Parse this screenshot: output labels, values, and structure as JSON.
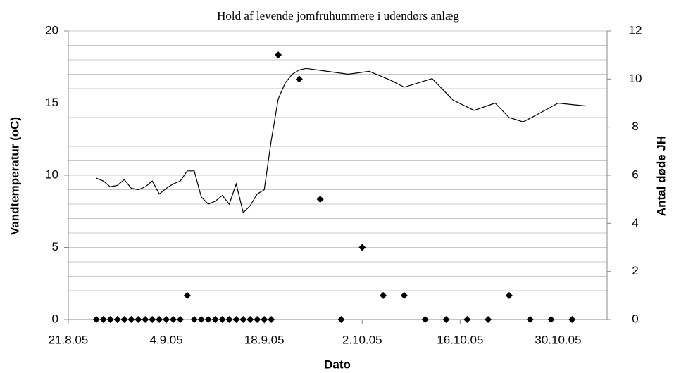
{
  "chart_data": {
    "type": "line",
    "title": "Hold af levende jomfruhummere i udendørs anlæg",
    "xlabel": "Dato",
    "ylabel": "Vandtemperatur (oC)",
    "y2label": "Antal døde JH",
    "xlim": [
      "2005-08-21",
      "2005-11-06"
    ],
    "xticks": [
      {
        "value": "2005-08-21",
        "label": "21.8.05"
      },
      {
        "value": "2005-09-04",
        "label": "4.9.05"
      },
      {
        "value": "2005-09-18",
        "label": "18.9.05"
      },
      {
        "value": "2005-10-02",
        "label": "2.10.05"
      },
      {
        "value": "2005-10-16",
        "label": "16.10.05"
      },
      {
        "value": "2005-10-30",
        "label": "30.10.05"
      }
    ],
    "ylim": [
      0,
      20
    ],
    "yticks": [
      0,
      5,
      10,
      15,
      20
    ],
    "y_minor_grid": [
      1,
      2,
      3,
      4,
      6,
      7,
      8,
      9,
      11,
      12,
      13,
      14,
      16,
      17,
      18,
      19
    ],
    "y2lim": [
      0,
      12
    ],
    "y2ticks": [
      0,
      2,
      4,
      6,
      8,
      10,
      12
    ],
    "grid": true,
    "series": [
      {
        "type": "line",
        "color": "#000000",
        "x": [
          "2005-08-25",
          "2005-08-26",
          "2005-08-27",
          "2005-08-28",
          "2005-08-29",
          "2005-08-30",
          "2005-08-31",
          "2005-09-01",
          "2005-09-02",
          "2005-09-03",
          "2005-09-04",
          "2005-09-05",
          "2005-09-06",
          "2005-09-07",
          "2005-09-08",
          "2005-09-09",
          "2005-09-10",
          "2005-09-11",
          "2005-09-12",
          "2005-09-13",
          "2005-09-14",
          "2005-09-15",
          "2005-09-16",
          "2005-09-17",
          "2005-09-18",
          "2005-09-19",
          "2005-09-20",
          "2005-09-21",
          "2005-09-22",
          "2005-09-23",
          "2005-09-24",
          "2005-09-27",
          "2005-09-30",
          "2005-10-03",
          "2005-10-06",
          "2005-10-08",
          "2005-10-10",
          "2005-10-12",
          "2005-10-15",
          "2005-10-18",
          "2005-10-21",
          "2005-10-23",
          "2005-10-25",
          "2005-10-27",
          "2005-10-30",
          "2005-11-01",
          "2005-11-03"
        ],
        "values": [
          9.8,
          9.6,
          9.2,
          9.3,
          9.7,
          9.1,
          9.0,
          9.2,
          9.6,
          8.7,
          9.1,
          9.4,
          9.6,
          10.3,
          10.3,
          8.5,
          8.0,
          8.2,
          8.6,
          8.0,
          9.4,
          7.4,
          7.9,
          8.7,
          9.0,
          12.4,
          15.3,
          16.4,
          17.0,
          17.3,
          17.4,
          17.2,
          17.0,
          17.2,
          16.6,
          16.1,
          16.4,
          16.7,
          15.2,
          14.5,
          15.0,
          14.0,
          13.7,
          14.2,
          15.0,
          14.9,
          14.8
        ]
      },
      {
        "type": "scatter",
        "axis": "y2",
        "color": "#000000",
        "x": [
          "2005-08-25",
          "2005-08-26",
          "2005-08-27",
          "2005-08-28",
          "2005-08-29",
          "2005-08-30",
          "2005-08-31",
          "2005-09-01",
          "2005-09-02",
          "2005-09-03",
          "2005-09-04",
          "2005-09-05",
          "2005-09-06",
          "2005-09-07",
          "2005-09-08",
          "2005-09-09",
          "2005-09-10",
          "2005-09-11",
          "2005-09-12",
          "2005-09-13",
          "2005-09-14",
          "2005-09-15",
          "2005-09-16",
          "2005-09-17",
          "2005-09-18",
          "2005-09-19",
          "2005-09-20",
          "2005-09-23",
          "2005-09-26",
          "2005-09-29",
          "2005-10-02",
          "2005-10-05",
          "2005-10-08",
          "2005-10-11",
          "2005-10-14",
          "2005-10-17",
          "2005-10-20",
          "2005-10-23",
          "2005-10-26",
          "2005-10-29",
          "2005-11-01"
        ],
        "values": [
          0,
          0,
          0,
          0,
          0,
          0,
          0,
          0,
          0,
          0,
          0,
          0,
          0,
          1,
          0,
          0,
          0,
          0,
          0,
          0,
          0,
          0,
          0,
          0,
          0,
          0,
          11,
          10,
          5,
          0,
          3,
          1,
          1,
          0,
          0,
          0,
          0,
          1,
          0,
          0,
          0
        ]
      }
    ]
  }
}
